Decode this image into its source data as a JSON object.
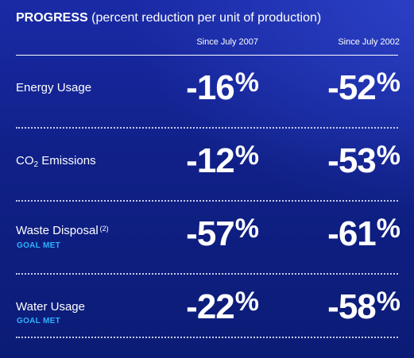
{
  "header": {
    "title_bold": "PROGRESS",
    "title_rest": "(percent reduction per unit of production)"
  },
  "columns": [
    "Since July 2007",
    "Since July 2002"
  ],
  "rows": [
    {
      "label": "Energy Usage",
      "goal": "",
      "values": [
        "-16",
        "-52"
      ],
      "unit": "%"
    },
    {
      "label_main": "CO",
      "label_sub": "2",
      "label_tail": " Emissions",
      "goal": "",
      "values": [
        "-12",
        "-53"
      ],
      "unit": "%"
    },
    {
      "label": "Waste Disposal",
      "note": "(2)",
      "goal": "GOAL MET",
      "values": [
        "-57",
        "-61"
      ],
      "unit": "%"
    },
    {
      "label": "Water Usage",
      "goal": "GOAL MET",
      "values": [
        "-22",
        "-58"
      ],
      "unit": "%"
    }
  ],
  "colors": {
    "goal_text": "#2fb0ff",
    "background": "#102087"
  }
}
